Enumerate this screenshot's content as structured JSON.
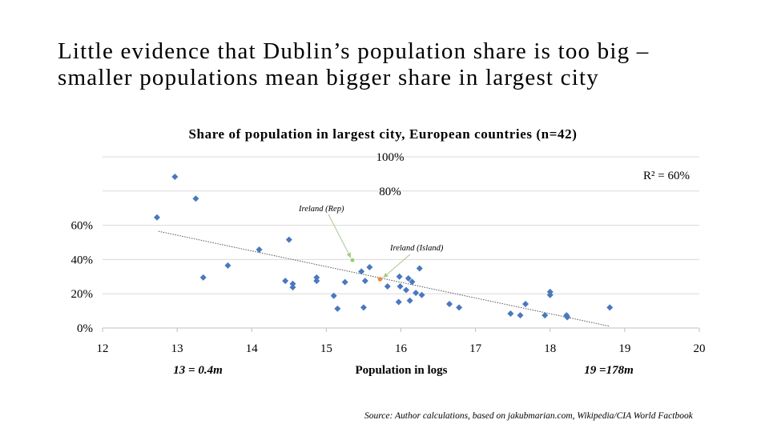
{
  "slide": {
    "title_line1": "Little evidence that Dublin’s population share is too big –",
    "title_line2": "smaller populations mean bigger share in largest city",
    "source": "Source: Author calculations, based on jakubmarian.com, Wikipedia/CIA World Factbook"
  },
  "chart_data": {
    "type": "scatter",
    "title": "Share of population in largest city, European countries (n=42)",
    "xlabel": "Population in logs",
    "ylabel": "",
    "xlim": [
      12,
      20
    ],
    "ylim": [
      0,
      1
    ],
    "x_ticks": [
      "12",
      "13",
      "14",
      "15",
      "16",
      "17",
      "18",
      "19",
      "20"
    ],
    "y_ticks": [
      "0%",
      "20%",
      "40%",
      "60%",
      "80%",
      "100%"
    ],
    "x_notes": {
      "left": "13 = 0.4m",
      "right": "19 =178m"
    },
    "r_squared_label": "R² = 60%",
    "trendline": {
      "x": [
        12.75,
        18.8
      ],
      "y": [
        0.565,
        0.01
      ]
    },
    "colors": {
      "points": "#4a78c0",
      "trend": "#555555",
      "ireland_rep": "#9ccf6e",
      "ireland_island": "#f08a3c",
      "leader": "#a9c98d"
    },
    "series": [
      {
        "values": [
          [
            12.73,
            0.646
          ],
          [
            12.97,
            0.883
          ],
          [
            13.25,
            0.756
          ],
          [
            13.35,
            0.295
          ],
          [
            13.68,
            0.365
          ],
          [
            14.1,
            0.458
          ],
          [
            14.45,
            0.275
          ],
          [
            14.5,
            0.516
          ],
          [
            14.55,
            0.258
          ],
          [
            14.55,
            0.238
          ],
          [
            14.87,
            0.295
          ],
          [
            14.87,
            0.275
          ],
          [
            15.1,
            0.188
          ],
          [
            15.15,
            0.113
          ],
          [
            15.25,
            0.268
          ],
          [
            15.47,
            0.33
          ],
          [
            15.5,
            0.12
          ],
          [
            15.52,
            0.275
          ],
          [
            15.58,
            0.355
          ],
          [
            15.82,
            0.243
          ],
          [
            15.97,
            0.152
          ],
          [
            15.98,
            0.3
          ],
          [
            15.99,
            0.243
          ],
          [
            16.07,
            0.222
          ],
          [
            16.1,
            0.29
          ],
          [
            16.12,
            0.16
          ],
          [
            16.15,
            0.27
          ],
          [
            16.2,
            0.205
          ],
          [
            16.25,
            0.348
          ],
          [
            16.28,
            0.193
          ],
          [
            16.65,
            0.14
          ],
          [
            16.78,
            0.12
          ],
          [
            17.47,
            0.084
          ],
          [
            17.6,
            0.074
          ],
          [
            17.67,
            0.14
          ],
          [
            17.93,
            0.074
          ],
          [
            18.0,
            0.211
          ],
          [
            18.0,
            0.193
          ],
          [
            18.22,
            0.074
          ],
          [
            18.23,
            0.063
          ],
          [
            18.8,
            0.12
          ]
        ]
      },
      {
        "name": "Ireland (Rep)",
        "values": [
          [
            15.35,
            0.396
          ]
        ]
      },
      {
        "name": "Ireland (Island)",
        "values": [
          [
            15.72,
            0.285
          ]
        ]
      }
    ],
    "grid": true,
    "legend": "none"
  }
}
